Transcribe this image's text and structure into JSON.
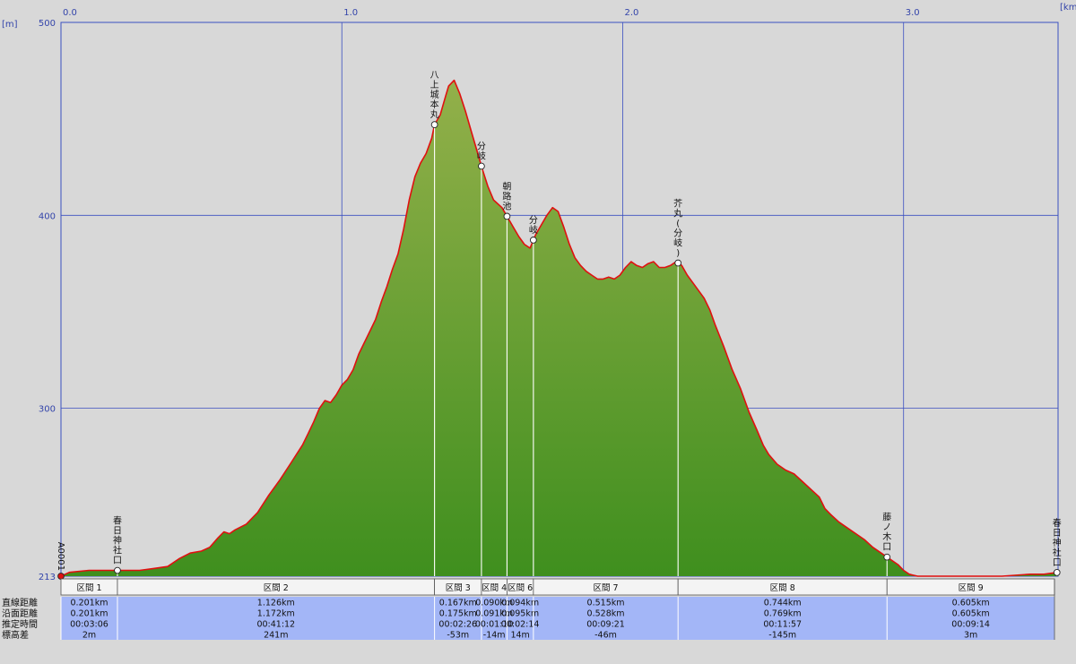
{
  "chart_data": {
    "type": "area",
    "y_unit_label": "[m]",
    "x_unit_label": "[km]",
    "xlim": [
      0.0,
      3.55
    ],
    "ylim": [
      213,
      500
    ],
    "x_ticks": [
      {
        "value": 0.0,
        "label": "0.0"
      },
      {
        "value": 1.0,
        "label": "1.0"
      },
      {
        "value": 2.0,
        "label": "2.0"
      },
      {
        "value": 3.0,
        "label": "3.0"
      }
    ],
    "y_ticks": [
      {
        "value": 213,
        "label": "213"
      },
      {
        "value": 300,
        "label": "300"
      },
      {
        "value": 400,
        "label": "400"
      },
      {
        "value": 500,
        "label": "500"
      }
    ],
    "grid": true,
    "colors": {
      "fill_top": "#93b04a",
      "fill_bottom": "#3f8f1e",
      "line": "#e01010",
      "grid": "#3a4fc0",
      "plot_bg": "#d8d8d8",
      "table_header_bg": "#f4f4f4",
      "table_value_bg": "#a3b6f7"
    },
    "profile": [
      [
        0.0,
        213
      ],
      [
        0.03,
        215
      ],
      [
        0.1,
        216
      ],
      [
        0.2,
        216
      ],
      [
        0.28,
        216
      ],
      [
        0.33,
        217
      ],
      [
        0.38,
        218
      ],
      [
        0.42,
        222
      ],
      [
        0.46,
        225
      ],
      [
        0.5,
        226
      ],
      [
        0.53,
        228
      ],
      [
        0.56,
        233
      ],
      [
        0.58,
        236
      ],
      [
        0.6,
        235
      ],
      [
        0.62,
        237
      ],
      [
        0.66,
        240
      ],
      [
        0.7,
        246
      ],
      [
        0.74,
        255
      ],
      [
        0.78,
        263
      ],
      [
        0.82,
        272
      ],
      [
        0.86,
        281
      ],
      [
        0.88,
        287
      ],
      [
        0.9,
        293
      ],
      [
        0.92,
        300
      ],
      [
        0.94,
        304
      ],
      [
        0.96,
        303
      ],
      [
        0.98,
        307
      ],
      [
        1.0,
        312
      ],
      [
        1.02,
        315
      ],
      [
        1.04,
        320
      ],
      [
        1.06,
        328
      ],
      [
        1.08,
        334
      ],
      [
        1.1,
        340
      ],
      [
        1.12,
        346
      ],
      [
        1.14,
        355
      ],
      [
        1.16,
        363
      ],
      [
        1.18,
        372
      ],
      [
        1.2,
        380
      ],
      [
        1.22,
        393
      ],
      [
        1.24,
        408
      ],
      [
        1.26,
        420
      ],
      [
        1.28,
        427
      ],
      [
        1.3,
        432
      ],
      [
        1.32,
        440
      ],
      [
        1.33,
        447
      ],
      [
        1.35,
        452
      ],
      [
        1.37,
        462
      ],
      [
        1.38,
        467
      ],
      [
        1.4,
        470
      ],
      [
        1.42,
        463
      ],
      [
        1.44,
        454
      ],
      [
        1.46,
        444
      ],
      [
        1.48,
        434
      ],
      [
        1.5,
        424
      ],
      [
        1.52,
        415
      ],
      [
        1.54,
        408
      ],
      [
        1.57,
        404
      ],
      [
        1.59,
        399
      ],
      [
        1.61,
        394
      ],
      [
        1.63,
        389
      ],
      [
        1.65,
        385
      ],
      [
        1.67,
        383
      ],
      [
        1.69,
        390
      ],
      [
        1.71,
        395
      ],
      [
        1.73,
        400
      ],
      [
        1.75,
        404
      ],
      [
        1.77,
        402
      ],
      [
        1.79,
        394
      ],
      [
        1.81,
        385
      ],
      [
        1.83,
        378
      ],
      [
        1.85,
        374
      ],
      [
        1.87,
        371
      ],
      [
        1.89,
        369
      ],
      [
        1.91,
        367
      ],
      [
        1.93,
        367
      ],
      [
        1.95,
        368
      ],
      [
        1.97,
        367
      ],
      [
        1.99,
        369
      ],
      [
        2.01,
        373
      ],
      [
        2.03,
        376
      ],
      [
        2.05,
        374
      ],
      [
        2.07,
        373
      ],
      [
        2.09,
        375
      ],
      [
        2.11,
        376
      ],
      [
        2.13,
        373
      ],
      [
        2.15,
        373
      ],
      [
        2.17,
        374
      ],
      [
        2.19,
        376
      ],
      [
        2.21,
        374
      ],
      [
        2.23,
        369
      ],
      [
        2.25,
        365
      ],
      [
        2.27,
        361
      ],
      [
        2.29,
        357
      ],
      [
        2.31,
        351
      ],
      [
        2.33,
        343
      ],
      [
        2.36,
        332
      ],
      [
        2.39,
        320
      ],
      [
        2.42,
        310
      ],
      [
        2.45,
        298
      ],
      [
        2.48,
        288
      ],
      [
        2.5,
        281
      ],
      [
        2.52,
        276
      ],
      [
        2.55,
        271
      ],
      [
        2.58,
        268
      ],
      [
        2.61,
        266
      ],
      [
        2.64,
        262
      ],
      [
        2.67,
        258
      ],
      [
        2.7,
        254
      ],
      [
        2.72,
        248
      ],
      [
        2.74,
        245
      ],
      [
        2.77,
        241
      ],
      [
        2.8,
        238
      ],
      [
        2.83,
        235
      ],
      [
        2.86,
        232
      ],
      [
        2.89,
        228
      ],
      [
        2.92,
        225
      ],
      [
        2.95,
        222
      ],
      [
        2.98,
        219
      ],
      [
        3.0,
        216
      ],
      [
        3.02,
        214
      ],
      [
        3.05,
        213
      ],
      [
        3.15,
        213
      ],
      [
        3.25,
        213
      ],
      [
        3.35,
        213
      ],
      [
        3.45,
        214
      ],
      [
        3.5,
        214
      ],
      [
        3.55,
        215
      ]
    ],
    "waypoints": [
      {
        "x": 0.0,
        "label": "A0001",
        "marker": "red"
      },
      {
        "x": 0.201,
        "label": "春日神社口",
        "marker": "white"
      },
      {
        "x": 1.33,
        "label": "八上城本丸",
        "marker": "white"
      },
      {
        "x": 1.497,
        "label": "分岐",
        "marker": "white"
      },
      {
        "x": 1.588,
        "label": "朝路池",
        "marker": "white"
      },
      {
        "x": 1.682,
        "label": "分岐",
        "marker": "white"
      },
      {
        "x": 2.197,
        "label": "芥丸(分岐)",
        "marker": "white"
      },
      {
        "x": 2.941,
        "label": "藤ノ木口",
        "marker": "white"
      },
      {
        "x": 3.546,
        "label": "春日神社口",
        "marker": "white"
      }
    ],
    "table": {
      "row_labels": [
        "直線距離",
        "沿面距離",
        "推定時間",
        "標高差"
      ],
      "sections": [
        {
          "name": "区間 1",
          "x0": 0.0,
          "x1": 0.201,
          "straight": "0.201km",
          "surface": "0.201km",
          "time": "00:03:06",
          "elev": "2m"
        },
        {
          "name": "区間 2",
          "x0": 0.201,
          "x1": 1.33,
          "straight": "1.126km",
          "surface": "1.172km",
          "time": "00:41:12",
          "elev": "241m"
        },
        {
          "name": "区間 3",
          "x0": 1.33,
          "x1": 1.497,
          "straight": "0.167km",
          "surface": "0.175km",
          "time": "00:02:26",
          "elev": "-53m"
        },
        {
          "name": "区間 4",
          "x0": 1.497,
          "x1": 1.588,
          "straight": "0.090km",
          "surface": "0.091km",
          "time": "00:01:10",
          "elev": "-14m"
        },
        {
          "name": "区間 6",
          "x0": 1.588,
          "x1": 1.682,
          "straight": "0.094km",
          "surface": "0.095km",
          "time": "00:02:14",
          "elev": "14m"
        },
        {
          "name": "区間 7",
          "x0": 1.682,
          "x1": 2.197,
          "straight": "0.515km",
          "surface": "0.528km",
          "time": "00:09:21",
          "elev": "-46m"
        },
        {
          "name": "区間 8",
          "x0": 2.197,
          "x1": 2.941,
          "straight": "0.744km",
          "surface": "0.769km",
          "time": "00:11:57",
          "elev": "-145m"
        },
        {
          "name": "区間 9",
          "x0": 2.941,
          "x1": 3.546,
          "straight": "0.605km",
          "surface": "0.605km",
          "time": "00:09:14",
          "elev": "3m"
        }
      ]
    }
  }
}
